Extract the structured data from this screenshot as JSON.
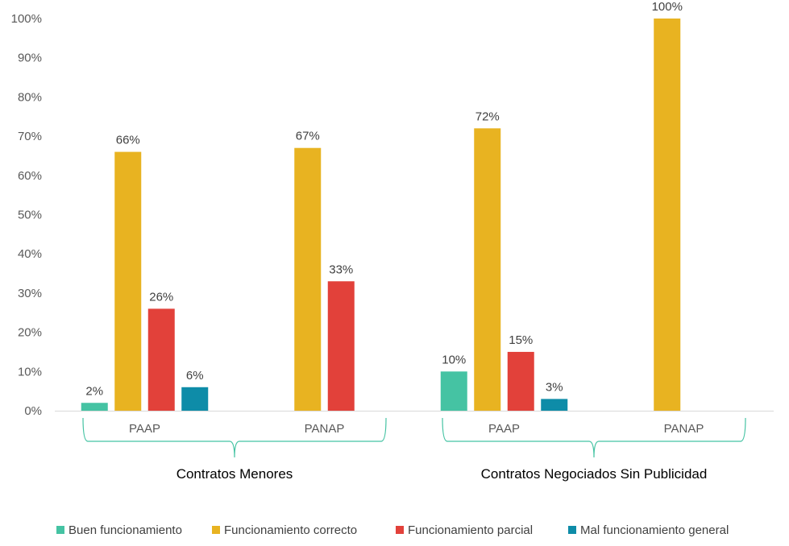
{
  "chart_data": {
    "type": "bar",
    "title": "",
    "xlabel": "",
    "ylabel": "",
    "ylim": [
      0,
      100
    ],
    "y_ticks": [
      0,
      10,
      20,
      30,
      40,
      50,
      60,
      70,
      80,
      90,
      100
    ],
    "y_tick_format": "{v}%",
    "grid": false,
    "legend_position": "bottom",
    "groups": [
      {
        "label": "Contratos Menores",
        "categories": [
          "PAAP",
          "PANAP"
        ]
      },
      {
        "label": "Contratos Negociados Sin Publicidad",
        "categories": [
          "PAAP",
          "PANAP"
        ]
      }
    ],
    "categories": [
      "PAAP",
      "PANAP",
      "PAAP",
      "PANAP"
    ],
    "series": [
      {
        "name": "Buen funcionamiento",
        "color": "#45c3a3",
        "values": [
          2,
          null,
          10,
          null
        ]
      },
      {
        "name": "Funcionamiento correcto",
        "color": "#e8b321",
        "values": [
          66,
          67,
          72,
          100
        ]
      },
      {
        "name": "Funcionamiento parcial",
        "color": "#e2413a",
        "values": [
          26,
          33,
          15,
          null
        ]
      },
      {
        "name": "Mal funcionamiento general",
        "color": "#0e8ca8",
        "values": [
          6,
          null,
          3,
          null
        ]
      }
    ],
    "data_labels": [
      [
        "2%",
        null,
        "10%",
        null
      ],
      [
        "66%",
        "67%",
        "72%",
        "100%"
      ],
      [
        "26%",
        "33%",
        "15%",
        null
      ],
      [
        "6%",
        null,
        "3%",
        null
      ]
    ]
  },
  "colors": {
    "axis": "#d9d9d9",
    "brace": "#45c3a3"
  }
}
